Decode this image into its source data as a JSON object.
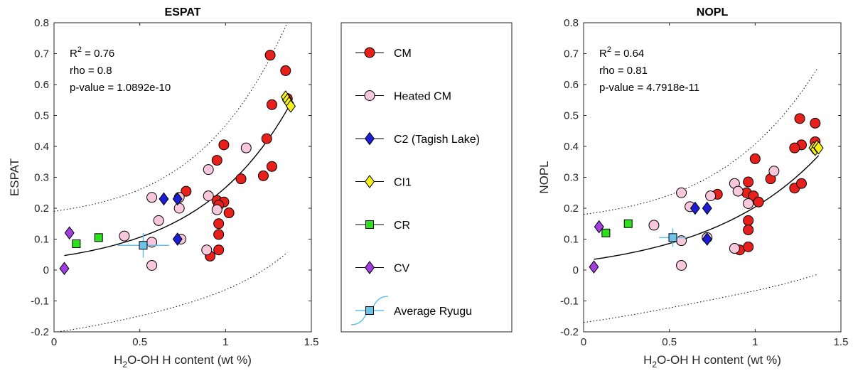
{
  "chart_data": [
    {
      "type": "scatter",
      "title": "ESPAT",
      "xlabel_main": "H",
      "xlabel_sub": "2",
      "xlabel_rest": "O-OH H content (wt %)",
      "ylabel": "ESPAT",
      "xlim": [
        0,
        1.5
      ],
      "ylim": [
        -0.2,
        0.8
      ],
      "xticks": [
        "0",
        "0.5",
        "1",
        "1.5"
      ],
      "yticks": [
        "-0.2",
        "-0.1",
        "0",
        "0.1",
        "0.2",
        "0.3",
        "0.4",
        "0.5",
        "0.6",
        "0.7",
        "0.8"
      ],
      "stats": {
        "r2_prefix": "R",
        "r2_sup": "2",
        "r2_value": " = 0.76",
        "rho": "rho = 0.8",
        "pvalue": "p-value = 1.0892e-10"
      },
      "fit": {
        "a": 0.0,
        "b": 0.042,
        "c": 1.85
      },
      "bound": {
        "upper": 0.19,
        "lower": -0.19,
        "upper_k": 0.0,
        "lower_k": 0.0
      },
      "series": [
        {
          "key": "cm",
          "points": [
            [
              1.26,
              0.695
            ],
            [
              1.35,
              0.645
            ],
            [
              1.36,
              0.555
            ],
            [
              1.27,
              0.535
            ],
            [
              1.24,
              0.425
            ],
            [
              0.99,
              0.405
            ],
            [
              0.95,
              0.355
            ],
            [
              1.27,
              0.335
            ],
            [
              1.22,
              0.305
            ],
            [
              1.09,
              0.295
            ],
            [
              0.77,
              0.255
            ],
            [
              0.95,
              0.225
            ],
            [
              0.99,
              0.22
            ],
            [
              0.96,
              0.21
            ],
            [
              1.02,
              0.185
            ],
            [
              0.96,
              0.15
            ],
            [
              0.96,
              0.115
            ],
            [
              0.96,
              0.065
            ],
            [
              0.91,
              0.045
            ]
          ]
        },
        {
          "key": "heated",
          "points": [
            [
              1.12,
              0.395
            ],
            [
              0.9,
              0.325
            ],
            [
              0.57,
              0.235
            ],
            [
              0.73,
              0.235
            ],
            [
              0.9,
              0.24
            ],
            [
              0.73,
              0.2
            ],
            [
              0.95,
              0.195
            ],
            [
              0.61,
              0.16
            ],
            [
              0.41,
              0.11
            ],
            [
              0.74,
              0.1
            ],
            [
              0.57,
              0.09
            ],
            [
              0.89,
              0.065
            ],
            [
              0.57,
              0.015
            ]
          ]
        },
        {
          "key": "c2",
          "points": [
            [
              0.64,
              0.23
            ],
            [
              0.72,
              0.23
            ],
            [
              0.72,
              0.1
            ]
          ]
        },
        {
          "key": "ci1",
          "points": [
            [
              1.35,
              0.56
            ],
            [
              1.36,
              0.55
            ],
            [
              1.37,
              0.54
            ],
            [
              1.38,
              0.53
            ]
          ]
        },
        {
          "key": "cr",
          "points": [
            [
              0.26,
              0.105
            ],
            [
              0.13,
              0.085
            ]
          ]
        },
        {
          "key": "cv",
          "points": [
            [
              0.09,
              0.12
            ],
            [
              0.06,
              0.005
            ]
          ]
        },
        {
          "key": "ryugu",
          "points": [
            [
              0.52,
              0.08
            ]
          ],
          "xerr": 0.15,
          "yerr": 0.04
        }
      ]
    },
    {
      "type": "scatter",
      "title": "NOPL",
      "xlabel_main": "H",
      "xlabel_sub": "2",
      "xlabel_rest": "O-OH H content (wt %)",
      "ylabel": "NOPL",
      "xlim": [
        0,
        1.5
      ],
      "ylim": [
        -0.2,
        0.8
      ],
      "xticks": [
        "0",
        "0.5",
        "1",
        "1.5"
      ],
      "yticks": [
        "-0.2",
        "-0.1",
        "0",
        "0.1",
        "0.2",
        "0.3",
        "0.4",
        "0.5",
        "0.6",
        "0.7",
        "0.8"
      ],
      "stats": {
        "r2_prefix": "R",
        "r2_sup": "2",
        "r2_value": " = 0.64",
        "rho": "rho = 0.81",
        "pvalue": "p-value = 4.7918e-11"
      },
      "fit": {
        "a": -0.02,
        "b": 0.05,
        "c": 1.5
      },
      "bound": {
        "upper": 0.18,
        "lower": -0.16,
        "upper_k": 0.0,
        "lower_k": 0.0
      },
      "series": [
        {
          "key": "cm",
          "points": [
            [
              1.26,
              0.49
            ],
            [
              1.35,
              0.475
            ],
            [
              1.35,
              0.415
            ],
            [
              1.27,
              0.405
            ],
            [
              1.23,
              0.395
            ],
            [
              1.0,
              0.36
            ],
            [
              1.09,
              0.295
            ],
            [
              0.96,
              0.285
            ],
            [
              0.78,
              0.245
            ],
            [
              0.95,
              0.25
            ],
            [
              0.99,
              0.24
            ],
            [
              1.02,
              0.22
            ],
            [
              1.23,
              0.265
            ],
            [
              1.27,
              0.28
            ],
            [
              0.96,
              0.16
            ],
            [
              0.96,
              0.13
            ],
            [
              0.91,
              0.065
            ],
            [
              0.96,
              0.075
            ]
          ]
        },
        {
          "key": "heated",
          "points": [
            [
              1.11,
              0.32
            ],
            [
              0.88,
              0.28
            ],
            [
              0.57,
              0.25
            ],
            [
              0.74,
              0.24
            ],
            [
              0.9,
              0.255
            ],
            [
              0.62,
              0.205
            ],
            [
              0.96,
              0.215
            ],
            [
              0.41,
              0.145
            ],
            [
              0.72,
              0.105
            ],
            [
              0.57,
              0.095
            ],
            [
              0.88,
              0.07
            ],
            [
              0.57,
              0.015
            ]
          ]
        },
        {
          "key": "c2",
          "points": [
            [
              0.65,
              0.2
            ],
            [
              0.72,
              0.2
            ],
            [
              0.72,
              0.1
            ]
          ]
        },
        {
          "key": "ci1",
          "points": [
            [
              1.34,
              0.395
            ],
            [
              1.35,
              0.39
            ],
            [
              1.36,
              0.4
            ],
            [
              1.37,
              0.395
            ]
          ]
        },
        {
          "key": "cr",
          "points": [
            [
              0.26,
              0.15
            ],
            [
              0.13,
              0.12
            ]
          ]
        },
        {
          "key": "cv",
          "points": [
            [
              0.09,
              0.14
            ],
            [
              0.06,
              0.01
            ]
          ]
        },
        {
          "key": "ryugu",
          "points": [
            [
              0.52,
              0.105
            ]
          ],
          "xerr": 0.08,
          "yerr": 0.03
        }
      ]
    }
  ],
  "legend": {
    "items": [
      {
        "key": "cm",
        "label": "CM",
        "marker": "circle",
        "fill": "#e8201c"
      },
      {
        "key": "heated",
        "label": "Heated CM",
        "marker": "circle",
        "fill": "#f9c7dc"
      },
      {
        "key": "c2",
        "label": "C2 (Tagish Lake)",
        "marker": "diamond",
        "fill": "#1d1dd6"
      },
      {
        "key": "ci1",
        "label": "CI1",
        "marker": "diamond",
        "fill": "#f7f21d"
      },
      {
        "key": "cr",
        "label": "CR",
        "marker": "square",
        "fill": "#2ce01c"
      },
      {
        "key": "cv",
        "label": "CV",
        "marker": "diamond",
        "fill": "#a23ee0"
      },
      {
        "key": "ryugu",
        "label": "Average Ryugu",
        "marker": "square",
        "fill": "#6ec3e6"
      }
    ]
  },
  "colors": {
    "errorbar": "#62c0e6",
    "fit_line": "#000000",
    "bound_line": "#000000"
  }
}
